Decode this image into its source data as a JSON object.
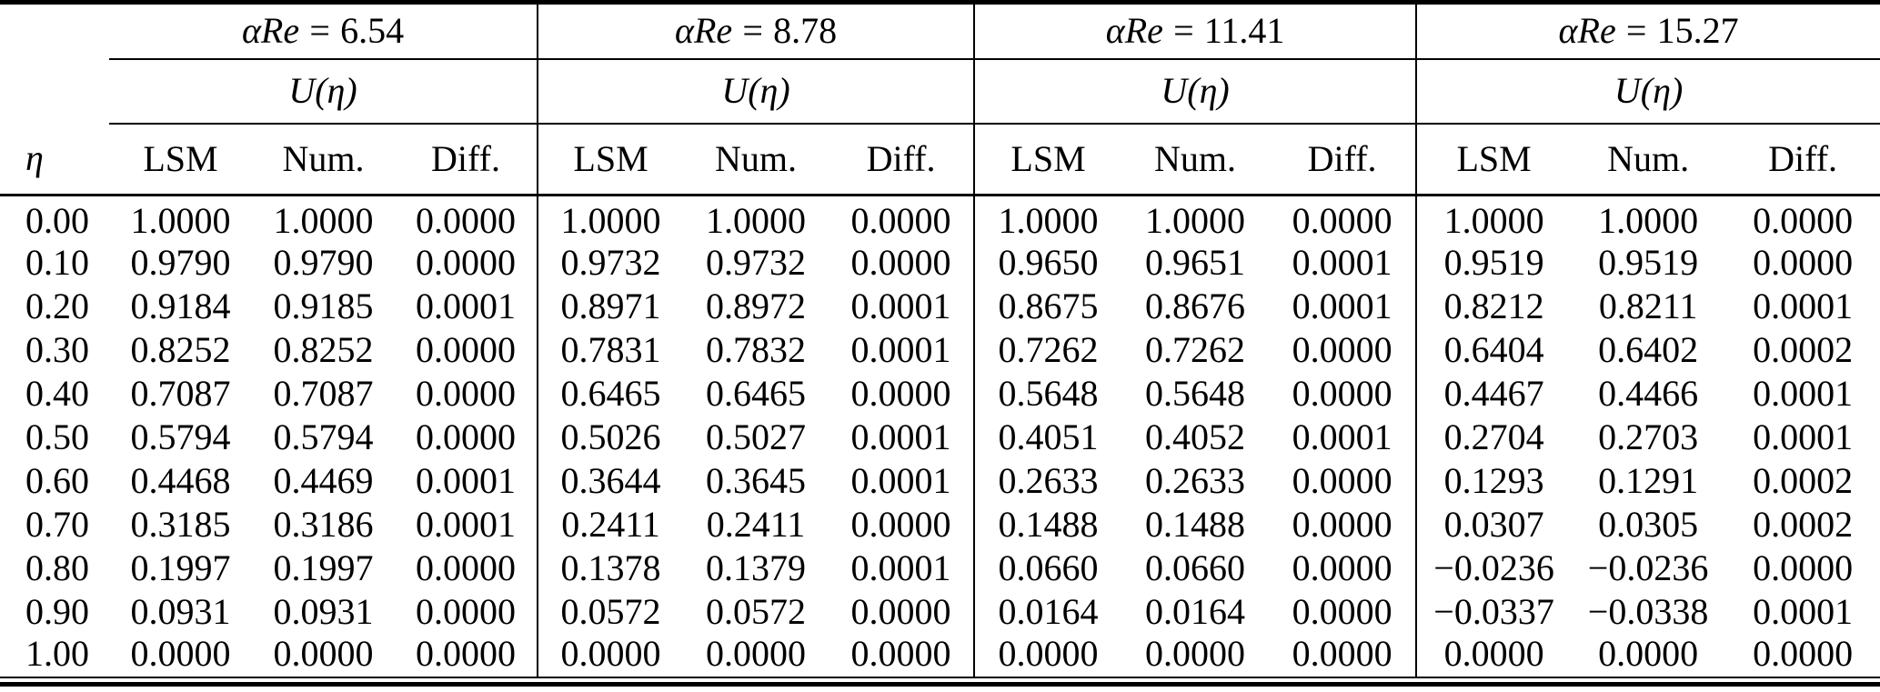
{
  "page": {
    "background": "#ffffff",
    "text_color": "#000000"
  },
  "table": {
    "eta_header": "η",
    "function_header": "U(η)",
    "group_headers": [
      {
        "symbol": "αRe",
        "eq": "=",
        "value": "6.54"
      },
      {
        "symbol": "αRe",
        "eq": "=",
        "value": "8.78"
      },
      {
        "symbol": "αRe",
        "eq": "=",
        "value": "11.41"
      },
      {
        "symbol": "αRe",
        "eq": "=",
        "value": "15.27"
      }
    ],
    "column_headers": [
      "LSM",
      "Num.",
      "Diff."
    ],
    "rows": [
      {
        "eta": "0.00",
        "values": [
          "1.0000",
          "1.0000",
          "0.0000",
          "1.0000",
          "1.0000",
          "0.0000",
          "1.0000",
          "1.0000",
          "0.0000",
          "1.0000",
          "1.0000",
          "0.0000"
        ]
      },
      {
        "eta": "0.10",
        "values": [
          "0.9790",
          "0.9790",
          "0.0000",
          "0.9732",
          "0.9732",
          "0.0000",
          "0.9650",
          "0.9651",
          "0.0001",
          "0.9519",
          "0.9519",
          "0.0000"
        ]
      },
      {
        "eta": "0.20",
        "values": [
          "0.9184",
          "0.9185",
          "0.0001",
          "0.8971",
          "0.8972",
          "0.0001",
          "0.8675",
          "0.8676",
          "0.0001",
          "0.8212",
          "0.8211",
          "0.0001"
        ]
      },
      {
        "eta": "0.30",
        "values": [
          "0.8252",
          "0.8252",
          "0.0000",
          "0.7831",
          "0.7832",
          "0.0001",
          "0.7262",
          "0.7262",
          "0.0000",
          "0.6404",
          "0.6402",
          "0.0002"
        ]
      },
      {
        "eta": "0.40",
        "values": [
          "0.7087",
          "0.7087",
          "0.0000",
          "0.6465",
          "0.6465",
          "0.0000",
          "0.5648",
          "0.5648",
          "0.0000",
          "0.4467",
          "0.4466",
          "0.0001"
        ]
      },
      {
        "eta": "0.50",
        "values": [
          "0.5794",
          "0.5794",
          "0.0000",
          "0.5026",
          "0.5027",
          "0.0001",
          "0.4051",
          "0.4052",
          "0.0001",
          "0.2704",
          "0.2703",
          "0.0001"
        ]
      },
      {
        "eta": "0.60",
        "values": [
          "0.4468",
          "0.4469",
          "0.0001",
          "0.3644",
          "0.3645",
          "0.0001",
          "0.2633",
          "0.2633",
          "0.0000",
          "0.1293",
          "0.1291",
          "0.0002"
        ]
      },
      {
        "eta": "0.70",
        "values": [
          "0.3185",
          "0.3186",
          "0.0001",
          "0.2411",
          "0.2411",
          "0.0000",
          "0.1488",
          "0.1488",
          "0.0000",
          "0.0307",
          "0.0305",
          "0.0002"
        ]
      },
      {
        "eta": "0.80",
        "values": [
          "0.1997",
          "0.1997",
          "0.0000",
          "0.1378",
          "0.1379",
          "0.0001",
          "0.0660",
          "0.0660",
          "0.0000",
          "−0.0236",
          "−0.0236",
          "0.0000"
        ]
      },
      {
        "eta": "0.90",
        "values": [
          "0.0931",
          "0.0931",
          "0.0000",
          "0.0572",
          "0.0572",
          "0.0000",
          "0.0164",
          "0.0164",
          "0.0000",
          "−0.0337",
          "−0.0338",
          "0.0001"
        ]
      },
      {
        "eta": "1.00",
        "values": [
          "0.0000",
          "0.0000",
          "0.0000",
          "0.0000",
          "0.0000",
          "0.0000",
          "0.0000",
          "0.0000",
          "0.0000",
          "0.0000",
          "0.0000",
          "0.0000"
        ]
      }
    ]
  }
}
